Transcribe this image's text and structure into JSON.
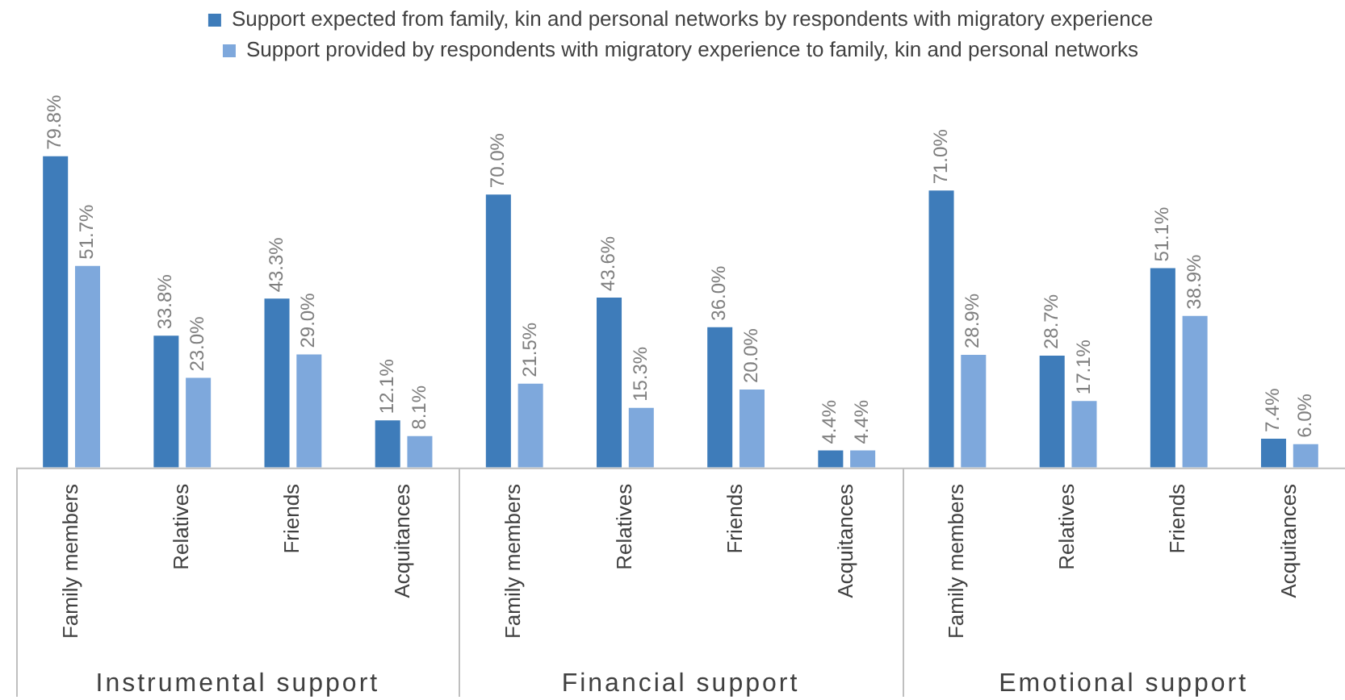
{
  "chart_data": {
    "type": "bar",
    "categories": [
      "Family members",
      "Relatives",
      "Friends",
      "Acquitances",
      "Family members",
      "Relatives",
      "Friends",
      "Acquitances",
      "Family members",
      "Relatives",
      "Friends",
      "Acquitances"
    ],
    "series": [
      {
        "name": "Support expected from family, kin and personal networks by respondents with migratory experience",
        "color": "#3e7cba",
        "values": [
          79.8,
          33.8,
          43.3,
          12.1,
          70.0,
          43.6,
          36.0,
          4.4,
          71.0,
          28.7,
          51.1,
          7.4
        ],
        "value_labels": [
          "79.8%",
          "33.8%",
          "43.3%",
          "12.1%",
          "70.0%",
          "43.6%",
          "36.0%",
          "4.4%",
          "71.0%",
          "28.7%",
          "51.1%",
          "7.4%"
        ]
      },
      {
        "name": "Support provided by respondents with migratory experience to family, kin and personal networks",
        "color": "#7ea8dc",
        "values": [
          51.7,
          23.0,
          29.0,
          8.1,
          21.5,
          15.3,
          20.0,
          4.4,
          28.9,
          17.1,
          38.9,
          6.0
        ],
        "value_labels": [
          "51.7%",
          "23.0%",
          "29.0%",
          "8.1%",
          "21.5%",
          "15.3%",
          "20.0%",
          "4.4%",
          "28.9%",
          "17.1%",
          "38.9%",
          "6.0%"
        ]
      }
    ],
    "annotations": [
      "Instrumental support",
      "Financial support",
      "Emotional support"
    ],
    "tick_labels": "x",
    "grid": false,
    "legend": "top"
  }
}
